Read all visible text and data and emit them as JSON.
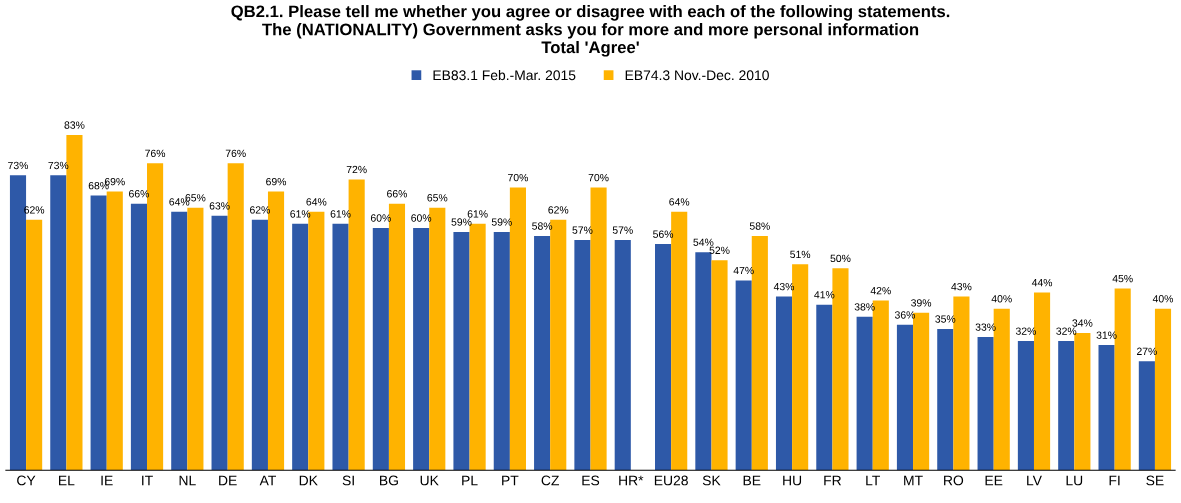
{
  "chart_data": {
    "type": "bar",
    "title": "QB2.1. Please tell me whether you agree or disagree with each of the following statements.\nThe (NATIONALITY) Government asks you for more and more personal information\nTotal 'Agree'",
    "categories": [
      "CY",
      "EL",
      "IE",
      "IT",
      "NL",
      "DE",
      "AT",
      "DK",
      "SI",
      "BG",
      "UK",
      "PL",
      "PT",
      "CZ",
      "ES",
      "HR*",
      "EU28",
      "SK",
      "BE",
      "HU",
      "FR",
      "LT",
      "MT",
      "RO",
      "EE",
      "LV",
      "LU",
      "FI",
      "SE"
    ],
    "series": [
      {
        "name": "EB83.1 Feb.-Mar. 2015",
        "color": "#2e59a8",
        "values": [
          73,
          73,
          68,
          66,
          64,
          63,
          62,
          61,
          61,
          60,
          60,
          59,
          59,
          58,
          57,
          57,
          56,
          54,
          47,
          43,
          41,
          38,
          36,
          35,
          33,
          32,
          32,
          31,
          27
        ],
        "value_labels": [
          "73%",
          "73%",
          "68%",
          "66%",
          "64%",
          "63%",
          "62%",
          "61%",
          "61%",
          "60%",
          "60%",
          "59%",
          "59%",
          "58%",
          "57%",
          "57%",
          "56%",
          "54%",
          "47%",
          "43%",
          "41%",
          "38%",
          "36%",
          "35%",
          "33%",
          "32%",
          "32%",
          "31%",
          "27%"
        ]
      },
      {
        "name": "EB74.3 Nov.-Dec. 2010",
        "color": "#ffb300",
        "values": [
          62,
          83,
          69,
          76,
          65,
          76,
          69,
          64,
          72,
          66,
          65,
          61,
          70,
          62,
          70,
          null,
          64,
          52,
          58,
          51,
          50,
          42,
          39,
          43,
          40,
          44,
          34,
          45,
          40
        ],
        "value_labels": [
          "62%",
          "83%",
          "69%",
          "76%",
          "65%",
          "76%",
          "69%",
          "64%",
          "72%",
          "66%",
          "65%",
          "61%",
          "70%",
          "62%",
          "70%",
          null,
          "64%",
          "52%",
          "58%",
          "51%",
          "50%",
          "42%",
          "39%",
          "43%",
          "40%",
          "44%",
          "34%",
          "45%",
          "40%"
        ]
      }
    ],
    "legend": "top",
    "grid": false,
    "tick_labels": "x"
  }
}
